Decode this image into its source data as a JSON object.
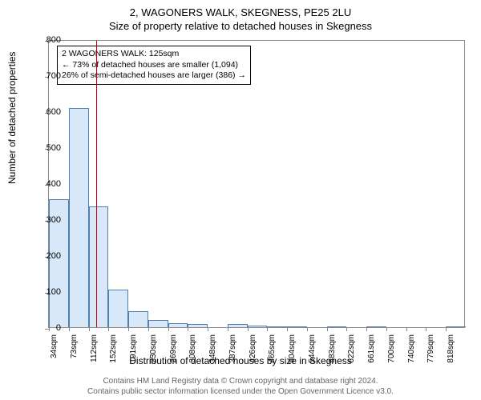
{
  "title": "2, WAGONERS WALK, SKEGNESS, PE25 2LU",
  "subtitle": "Size of property relative to detached houses in Skegness",
  "y_axis_label": "Number of detached properties",
  "x_axis_label": "Distribution of detached houses by size in Skegness",
  "footer_line1": "Contains HM Land Registry data © Crown copyright and database right 2024.",
  "footer_line2": "Contains public sector information licensed under the Open Government Licence v3.0.",
  "chart": {
    "type": "histogram",
    "ylim": [
      0,
      800
    ],
    "ytick_step": 100,
    "x_ticks": [
      "34sqm",
      "73sqm",
      "112sqm",
      "152sqm",
      "191sqm",
      "230sqm",
      "269sqm",
      "308sqm",
      "348sqm",
      "387sqm",
      "426sqm",
      "465sqm",
      "504sqm",
      "544sqm",
      "583sqm",
      "622sqm",
      "661sqm",
      "700sqm",
      "740sqm",
      "779sqm",
      "818sqm"
    ],
    "bar_values": [
      355,
      610,
      335,
      105,
      45,
      20,
      12,
      8,
      0,
      8,
      5,
      3,
      2,
      0,
      2,
      0,
      2,
      0,
      0,
      0,
      2
    ],
    "bar_fill": "#d8e8f8",
    "bar_stroke": "#5080b0",
    "bar_width_ratio": 1.0,
    "border_color": "#888888",
    "marker_line_color": "#cc0000",
    "marker_position": 125,
    "x_min": 34,
    "x_max": 838,
    "background": "#ffffff"
  },
  "annotation": {
    "line1": "2 WAGONERS WALK: 125sqm",
    "line2": "← 73% of detached houses are smaller (1,094)",
    "line3": "26% of semi-detached houses are larger (386) →"
  }
}
